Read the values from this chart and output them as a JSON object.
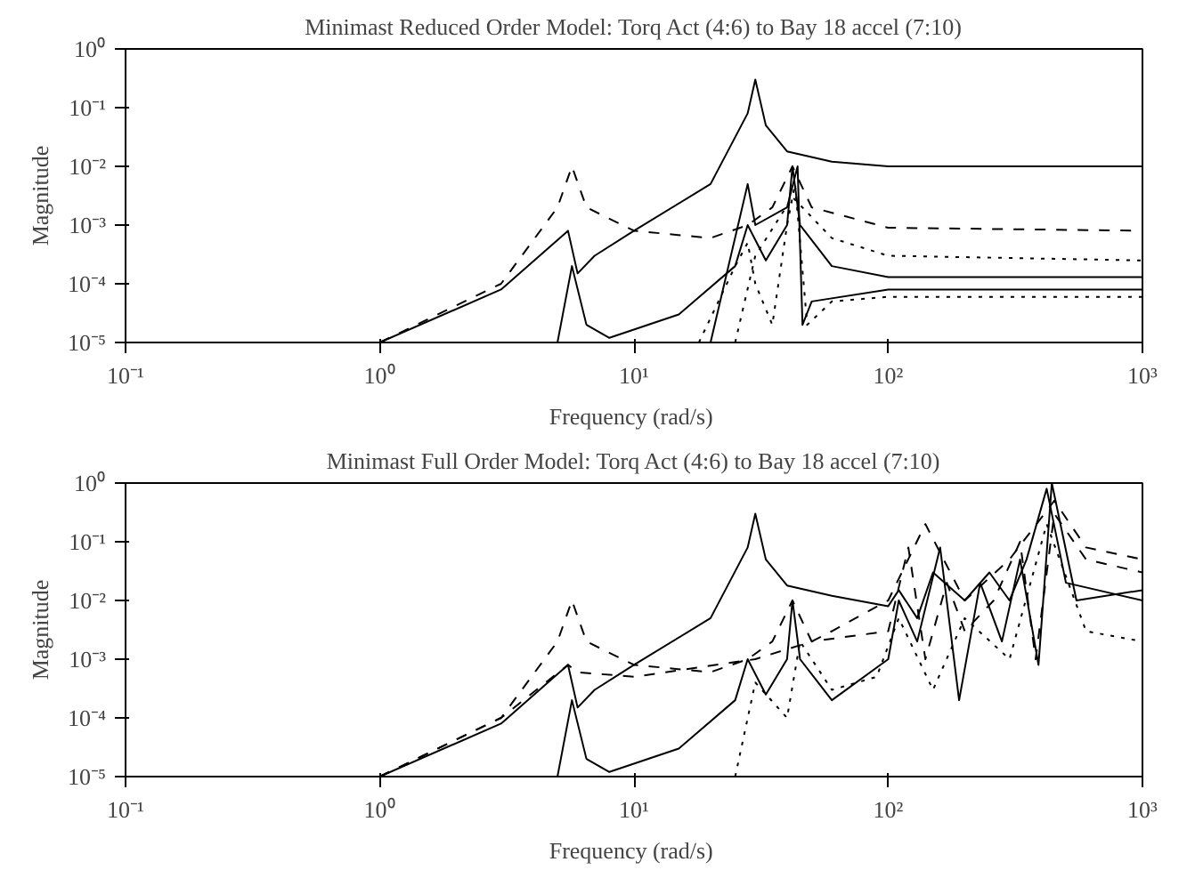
{
  "chart_data": [
    {
      "type": "line",
      "title": "Minimast Reduced Order Model: Torq Act (4:6) to Bay 18 accel (7:10)",
      "xlabel": "Frequency  (rad/s)",
      "ylabel": "Magnitude",
      "log": "xy",
      "grid": false,
      "xlim": [
        0.1,
        1000
      ],
      "ylim": [
        1e-05,
        1
      ],
      "xticks": [
        {
          "value": 0.1,
          "label": "10⁻¹"
        },
        {
          "value": 1,
          "label": "10⁰"
        },
        {
          "value": 10,
          "label": "10¹"
        },
        {
          "value": 100,
          "label": "10²"
        },
        {
          "value": 1000,
          "label": "10³"
        }
      ],
      "yticks": [
        {
          "value": 1e-05,
          "label": "10⁻⁵"
        },
        {
          "value": 0.0001,
          "label": "10⁻⁴"
        },
        {
          "value": 0.001,
          "label": "10⁻³"
        },
        {
          "value": 0.01,
          "label": "10⁻²"
        },
        {
          "value": 0.1,
          "label": "10⁻¹"
        },
        {
          "value": 1,
          "label": "10⁰"
        }
      ],
      "series": [
        {
          "color": "#000000",
          "line_style": "solid",
          "x": [
            1,
            3,
            5.5,
            6,
            7,
            10,
            20,
            28,
            30,
            33,
            40,
            60,
            100,
            1000
          ],
          "values": [
            1e-05,
            8e-05,
            0.0008,
            0.00015,
            0.0003,
            0.0008,
            0.005,
            0.08,
            0.3,
            0.05,
            0.018,
            0.012,
            0.01,
            0.01
          ]
        },
        {
          "color": "#000000",
          "line_style": "dashed",
          "x": [
            1,
            3,
            5,
            5.7,
            6.5,
            10,
            20,
            28,
            35,
            42,
            50,
            100,
            1000
          ],
          "values": [
            1e-05,
            0.0001,
            0.002,
            0.01,
            0.002,
            0.0008,
            0.0006,
            0.001,
            0.002,
            0.01,
            0.002,
            0.0009,
            0.0008
          ]
        },
        {
          "color": "#000000",
          "line_style": "solid",
          "x": [
            5,
            5.7,
            6.5,
            8,
            15,
            25,
            28,
            33,
            40,
            42,
            45,
            60,
            100,
            1000
          ],
          "values": [
            1e-05,
            0.0002,
            2e-05,
            1.2e-05,
            3e-05,
            0.0002,
            0.001,
            0.00025,
            0.001,
            0.01,
            0.001,
            0.0002,
            0.00013,
            0.00013
          ]
        },
        {
          "color": "#000000",
          "line_style": "dotted",
          "x": [
            18,
            25,
            28,
            30,
            35,
            40,
            43,
            48,
            60,
            100,
            1000
          ],
          "values": [
            1e-05,
            0.0002,
            0.0005,
            0.0001,
            2e-05,
            0.001,
            0.005,
            2e-05,
            5e-05,
            6e-05,
            6e-05
          ]
        },
        {
          "color": "#000000",
          "line_style": "dotted",
          "x": [
            25,
            30,
            42,
            60,
            100,
            1000
          ],
          "values": [
            1e-05,
            0.0003,
            0.003,
            0.0006,
            0.0003,
            0.00025
          ]
        },
        {
          "color": "#000000",
          "line_style": "solid",
          "x": [
            20,
            28,
            30,
            40,
            44,
            46,
            50,
            100,
            1000
          ],
          "values": [
            1e-05,
            0.005,
            0.001,
            0.002,
            0.01,
            2e-05,
            5e-05,
            8e-05,
            8e-05
          ]
        }
      ]
    },
    {
      "type": "line",
      "title": "Minimast Full Order Model: Torq Act (4:6) to Bay 18 accel (7:10)",
      "xlabel": "Frequency  (rad/s)",
      "ylabel": "Magnitude",
      "log": "xy",
      "grid": false,
      "xlim": [
        0.1,
        1000
      ],
      "ylim": [
        1e-05,
        1
      ],
      "xticks": [
        {
          "value": 0.1,
          "label": "10⁻¹"
        },
        {
          "value": 1,
          "label": "10⁰"
        },
        {
          "value": 10,
          "label": "10¹"
        },
        {
          "value": 100,
          "label": "10²"
        },
        {
          "value": 1000,
          "label": "10³"
        }
      ],
      "yticks": [
        {
          "value": 1e-05,
          "label": "10⁻⁵"
        },
        {
          "value": 0.0001,
          "label": "10⁻⁴"
        },
        {
          "value": 0.001,
          "label": "10⁻³"
        },
        {
          "value": 0.01,
          "label": "10⁻²"
        },
        {
          "value": 0.1,
          "label": "10⁻¹"
        },
        {
          "value": 1,
          "label": "10⁰"
        }
      ],
      "series": [
        {
          "color": "#000000",
          "line_style": "solid",
          "x": [
            1,
            3,
            5.5,
            6,
            7,
            10,
            20,
            28,
            30,
            33,
            40,
            60,
            100,
            110,
            130,
            150,
            200,
            250,
            300,
            350,
            420,
            500,
            1000
          ],
          "values": [
            1e-05,
            8e-05,
            0.0008,
            0.00015,
            0.0003,
            0.0008,
            0.005,
            0.08,
            0.3,
            0.05,
            0.018,
            0.012,
            0.008,
            0.015,
            0.005,
            0.03,
            0.01,
            0.03,
            0.01,
            0.05,
            0.8,
            0.02,
            0.01
          ]
        },
        {
          "color": "#000000",
          "line_style": "dashed",
          "x": [
            1,
            3,
            5,
            5.7,
            6.5,
            10,
            20,
            28,
            35,
            42,
            50,
            100,
            120,
            140,
            170,
            200,
            260,
            330,
            380,
            450,
            600,
            1000
          ],
          "values": [
            1e-05,
            0.0001,
            0.002,
            0.01,
            0.002,
            0.0008,
            0.0006,
            0.001,
            0.002,
            0.01,
            0.002,
            0.003,
            0.08,
            0.001,
            0.02,
            0.003,
            0.01,
            0.1,
            0.001,
            0.3,
            0.05,
            0.03
          ]
        },
        {
          "color": "#000000",
          "line_style": "solid",
          "x": [
            5,
            5.7,
            6.5,
            8,
            15,
            25,
            28,
            33,
            40,
            42,
            45,
            60,
            100,
            110,
            130,
            160,
            190,
            230,
            280,
            330,
            390,
            440,
            550,
            1000
          ],
          "values": [
            1e-05,
            0.0002,
            2e-05,
            1.2e-05,
            3e-05,
            0.0002,
            0.001,
            0.00025,
            0.001,
            0.01,
            0.001,
            0.0002,
            0.001,
            0.01,
            0.002,
            0.08,
            0.0002,
            0.02,
            0.002,
            0.05,
            0.0008,
            1,
            0.01,
            0.015
          ]
        },
        {
          "color": "#000000",
          "line_style": "dotted",
          "x": [
            25,
            30,
            40,
            45,
            60,
            90,
            110,
            150,
            200,
            300,
            420,
            600,
            1000
          ],
          "values": [
            1e-05,
            0.0004,
            0.0001,
            0.002,
            0.0003,
            0.0005,
            0.005,
            0.0003,
            0.005,
            0.001,
            0.2,
            0.003,
            0.002
          ]
        },
        {
          "color": "#000000",
          "line_style": "dashed",
          "x": [
            1,
            3,
            5.5,
            6,
            10,
            30,
            50,
            60,
            100,
            140,
            200,
            300,
            450,
            600,
            1000
          ],
          "values": [
            1e-05,
            0.0001,
            0.0008,
            0.0006,
            0.0005,
            0.001,
            0.002,
            0.003,
            0.01,
            0.2,
            0.01,
            0.05,
            0.5,
            0.08,
            0.05
          ]
        }
      ]
    }
  ]
}
